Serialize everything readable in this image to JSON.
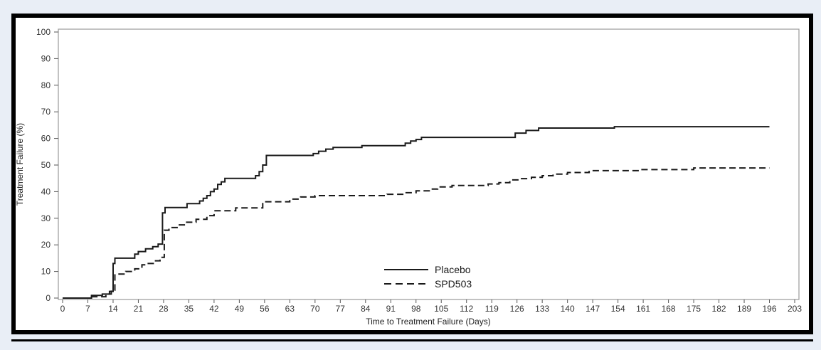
{
  "figure": {
    "kind": "kaplan-meier-step-chart",
    "colors": {
      "page_bg": "#e9eef6",
      "panel_bg": "#ffffff",
      "panel_border": "#000000",
      "plot_frame": "#9a9a9a",
      "tick": "#555555",
      "curve": "#1a1a1a"
    }
  },
  "chart_data": {
    "type": "line",
    "subtype": "step",
    "title": "",
    "xlabel": "Time to Treatment Failure (Days)",
    "ylabel": "Treatment Failure (%)",
    "xlim": [
      0,
      203
    ],
    "ylim": [
      0,
      100
    ],
    "grid": false,
    "legend_position": "inside-bottom-center",
    "x_ticks": [
      0,
      7,
      14,
      21,
      28,
      35,
      42,
      49,
      56,
      63,
      70,
      77,
      84,
      91,
      98,
      105,
      112,
      119,
      126,
      133,
      140,
      147,
      154,
      161,
      168,
      175,
      182,
      189,
      196,
      203
    ],
    "y_ticks": [
      0,
      10,
      20,
      30,
      40,
      50,
      60,
      70,
      80,
      90,
      100
    ],
    "series": [
      {
        "name": "Placebo",
        "style": "solid",
        "step_points": [
          [
            0,
            0
          ],
          [
            8,
            1
          ],
          [
            11,
            1.5
          ],
          [
            13,
            2.5
          ],
          [
            14,
            13
          ],
          [
            14.5,
            15
          ],
          [
            20,
            16.5
          ],
          [
            21,
            17.5
          ],
          [
            23,
            18.5
          ],
          [
            25,
            19.3
          ],
          [
            26.5,
            20.3
          ],
          [
            27.7,
            32
          ],
          [
            28.4,
            34
          ],
          [
            34.5,
            35.5
          ],
          [
            38,
            36.5
          ],
          [
            39,
            37.5
          ],
          [
            40,
            38.5
          ],
          [
            41,
            40
          ],
          [
            42,
            41
          ],
          [
            43,
            42.7
          ],
          [
            44,
            43.7
          ],
          [
            45,
            45
          ],
          [
            53.5,
            46
          ],
          [
            54.5,
            47.5
          ],
          [
            55.5,
            50
          ],
          [
            56.5,
            53.6
          ],
          [
            69.5,
            54.3
          ],
          [
            71,
            55.2
          ],
          [
            73,
            56
          ],
          [
            75,
            56.6
          ],
          [
            83,
            57.3
          ],
          [
            95,
            58.2
          ],
          [
            96.5,
            59
          ],
          [
            98,
            59.6
          ],
          [
            99.5,
            60.4
          ],
          [
            125.5,
            62
          ],
          [
            128.5,
            63
          ],
          [
            132,
            63.9
          ],
          [
            153,
            64.4
          ],
          [
            196,
            64.4
          ]
        ]
      },
      {
        "name": "SPD503",
        "style": "dashed",
        "step_points": [
          [
            0,
            0
          ],
          [
            8,
            0.5
          ],
          [
            12,
            1.5
          ],
          [
            13.5,
            3
          ],
          [
            14.5,
            9
          ],
          [
            17.5,
            10
          ],
          [
            20,
            11
          ],
          [
            22,
            12.5
          ],
          [
            23.5,
            13
          ],
          [
            25.5,
            14
          ],
          [
            27,
            15.3
          ],
          [
            28.2,
            25.5
          ],
          [
            29.5,
            26.5
          ],
          [
            32,
            27.5
          ],
          [
            34,
            28.5
          ],
          [
            37,
            29.6
          ],
          [
            40,
            31
          ],
          [
            42,
            32.8
          ],
          [
            48,
            33.9
          ],
          [
            55.5,
            36.2
          ],
          [
            63,
            37.2
          ],
          [
            66,
            38
          ],
          [
            70,
            38.5
          ],
          [
            90,
            39
          ],
          [
            95,
            39.6
          ],
          [
            98,
            40.3
          ],
          [
            102,
            41
          ],
          [
            104,
            41.8
          ],
          [
            108,
            42.3
          ],
          [
            118,
            42.9
          ],
          [
            121,
            43.4
          ],
          [
            124,
            44.4
          ],
          [
            127,
            44.9
          ],
          [
            130,
            45.4
          ],
          [
            133,
            46
          ],
          [
            136,
            46.6
          ],
          [
            140,
            47.2
          ],
          [
            146,
            47.9
          ],
          [
            160,
            48.3
          ],
          [
            175,
            48.9
          ],
          [
            196,
            48.9
          ]
        ]
      }
    ]
  }
}
